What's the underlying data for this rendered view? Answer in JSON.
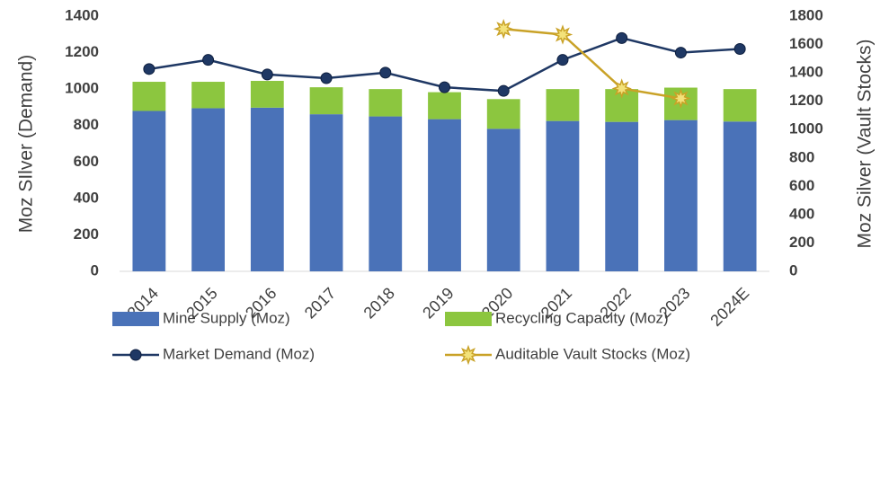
{
  "chart_data": {
    "type": "combo",
    "categories": [
      "2014",
      "2015",
      "2016",
      "2017",
      "2018",
      "2019",
      "2020",
      "2021",
      "2022",
      "2023",
      "2024E"
    ],
    "y_label": "Moz SIlver (Demand)",
    "y2_label": "Moz Silver (Vault Stocks)",
    "ylim": [
      0,
      1400
    ],
    "yticks": [
      0,
      200,
      400,
      600,
      800,
      1000,
      1200,
      1400
    ],
    "y2lim": [
      0,
      1800
    ],
    "y2ticks": [
      0,
      200,
      400,
      600,
      800,
      1000,
      1200,
      1400,
      1600,
      1800
    ],
    "series": [
      {
        "name": "Mine Supply (Moz)",
        "kind": "stack",
        "color": "#4a72b8",
        "values": [
          880,
          895,
          898,
          862,
          850,
          835,
          782,
          825,
          820,
          830,
          822
        ]
      },
      {
        "name": "Recycling Capacity (Moz)",
        "kind": "stack",
        "color": "#8cc63f",
        "values": [
          160,
          145,
          147,
          148,
          150,
          148,
          163,
          175,
          180,
          178,
          178
        ]
      },
      {
        "name": "Market Demand (Moz)",
        "kind": "line",
        "color": "#1f3864",
        "values": [
          1110,
          1160,
          1080,
          1060,
          1090,
          1010,
          990,
          1160,
          1280,
          1200,
          1220
        ]
      },
      {
        "name": "Auditable Vault Stocks (Moz)",
        "kind": "line",
        "axis": "y2",
        "color": "#c9a227",
        "values": [
          null,
          null,
          null,
          null,
          null,
          null,
          1710,
          1670,
          1290,
          1220,
          null
        ]
      }
    ]
  }
}
